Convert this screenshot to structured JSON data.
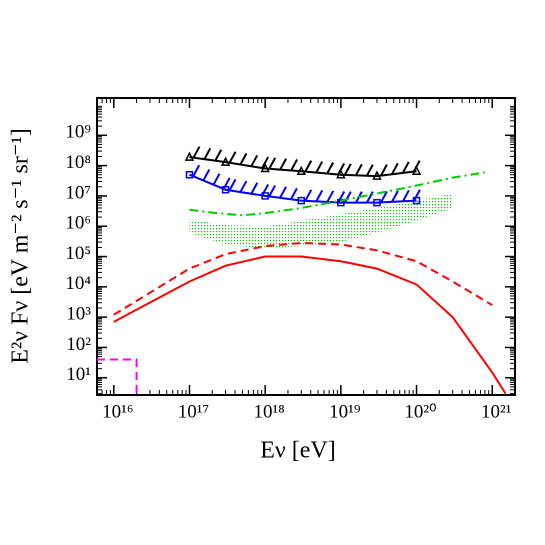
{
  "chart_data": {
    "type": "line",
    "xlabel": "Eν [eV]",
    "ylabel": "E²ν Fν [eV m⁻² s⁻¹ sr⁻¹]",
    "log_x": true,
    "log_y": true,
    "xlim": [
      6000000000000000.0,
      2e+21
    ],
    "ylim": [
      2.7,
      17000000000.0
    ],
    "xticks": [
      {
        "value": 1e+16,
        "label": "10¹⁶"
      },
      {
        "value": 1e+17,
        "label": "10¹⁷"
      },
      {
        "value": 1e+18,
        "label": "10¹⁸"
      },
      {
        "value": 1e+19,
        "label": "10¹⁹"
      },
      {
        "value": 1e+20,
        "label": "10²⁰"
      },
      {
        "value": 1e+21,
        "label": "10²¹"
      }
    ],
    "yticks": [
      {
        "value": 10.0,
        "label": "10¹"
      },
      {
        "value": 100.0,
        "label": "10²"
      },
      {
        "value": 1000.0,
        "label": "10³"
      },
      {
        "value": 10000.0,
        "label": "10⁴"
      },
      {
        "value": 100000.0,
        "label": "10⁵"
      },
      {
        "value": 1000000.0,
        "label": "10⁶"
      },
      {
        "value": 10000000.0,
        "label": "10⁷"
      },
      {
        "value": 100000000.0,
        "label": "10⁸"
      },
      {
        "value": 1000000000.0,
        "label": "10⁹"
      }
    ],
    "series": [
      {
        "color": "#000000",
        "style": "solid",
        "marker": "triangle",
        "hatch": true,
        "x": [
          1e+17,
          3e+17,
          1e+18,
          3e+18,
          1e+19,
          3e+19,
          1e+20
        ],
        "values": [
          190000000.0,
          130000000.0,
          80000000.0,
          65000000.0,
          50000000.0,
          45000000.0,
          65000000.0
        ]
      },
      {
        "color": "#0000ff",
        "style": "solid",
        "marker": "square",
        "hatch": true,
        "x": [
          1e+17,
          3e+17,
          1e+18,
          3e+18,
          1e+19,
          3e+19,
          1e+20
        ],
        "values": [
          50000000.0,
          16000000.0,
          10000000.0,
          7000000.0,
          6000000.0,
          6000000.0,
          7000000.0
        ]
      },
      {
        "color": "#00cc00",
        "style": "dashdot",
        "x": [
          1e+17,
          2e+17,
          5e+17,
          1e+18,
          3e+18,
          1e+19,
          3e+19,
          1e+20,
          3e+20,
          8e+20
        ],
        "values": [
          3500000.0,
          2800000.0,
          2300000.0,
          2700000.0,
          4000000.0,
          7000000.0,
          12000000.0,
          22000000.0,
          40000000.0,
          60000000.0
        ]
      },
      {
        "color": "#00cc00",
        "style": "band",
        "x": [
          1e+17,
          3e+17,
          1e+18,
          3e+18,
          1e+19,
          3e+19,
          1e+20,
          3e+20
        ],
        "values": [
          1700000.0,
          1100000.0,
          1000000.0,
          1500000.0,
          2500000.0,
          4000000.0,
          7000000.0,
          12000000.0
        ],
        "lower": [
          600000.0,
          250000.0,
          180000.0,
          220000.0,
          300000.0,
          600000.0,
          1500000.0,
          4000000.0
        ]
      },
      {
        "color": "#ff0000",
        "style": "dashed",
        "x": [
          1e+16,
          1e+17,
          3e+17,
          1e+18,
          3e+18,
          1e+19,
          3e+19,
          1e+20,
          3e+20,
          1e+21
        ],
        "values": [
          1200.0,
          40000.0,
          120000.0,
          220000.0,
          280000.0,
          250000.0,
          160000.0,
          70000.0,
          15000.0,
          2500.0
        ]
      },
      {
        "color": "#ff0000",
        "style": "solid",
        "x": [
          1e+16,
          1e+17,
          3e+17,
          1e+18,
          3e+18,
          1e+19,
          3e+19,
          1e+20,
          3e+20,
          1e+21,
          1.5e+21
        ],
        "values": [
          700.0,
          15000.0,
          50000.0,
          100000.0,
          100000.0,
          70000.0,
          40000.0,
          12000.0,
          1000.0,
          15,
          3
        ]
      },
      {
        "color": "#ff00ff",
        "style": "dashed",
        "x": [
          6000000000000000.0,
          2e+16,
          2e+16
        ],
        "values": [
          40,
          40,
          2.7
        ]
      }
    ]
  }
}
